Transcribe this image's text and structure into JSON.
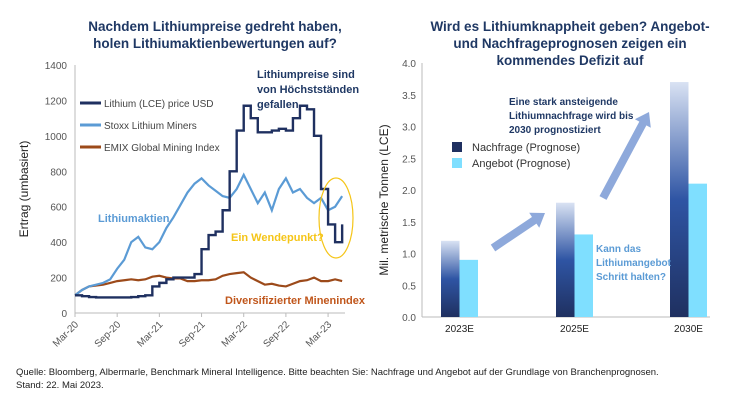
{
  "chart_data": [
    {
      "type": "line",
      "title": "Nachdem Lithiumpreise gedreht haben, holen Lithiumaktienbewertungen auf?",
      "ylabel": "Ertrag (umbasiert)",
      "ylim": [
        0,
        1400
      ],
      "yticks": [
        "0",
        "200",
        "400",
        "600",
        "800",
        "1000",
        "1200",
        "1400"
      ],
      "xticks": [
        "Mar-20",
        "Sep-20",
        "Mar-21",
        "Sep-21",
        "Mar-22",
        "Sep-22",
        "Mar-23"
      ],
      "x_start": "Mar-20",
      "x_frequency": "monthly",
      "legend_position": "top-left",
      "grid": false,
      "series": [
        {
          "name": "Lithium (LCE) price USD",
          "color": "#1f3060",
          "step": true,
          "values": [
            100,
            95,
            90,
            88,
            88,
            88,
            88,
            88,
            90,
            95,
            100,
            150,
            170,
            190,
            200,
            200,
            200,
            220,
            360,
            440,
            460,
            580,
            800,
            1030,
            1170,
            1100,
            1020,
            1020,
            1030,
            1040,
            1030,
            1100,
            1170,
            1150,
            1000,
            700,
            500,
            400,
            500
          ]
        },
        {
          "name": "Stoxx Lithium Miners",
          "color": "#5b9bd5",
          "values": [
            100,
            130,
            150,
            160,
            170,
            190,
            250,
            300,
            400,
            430,
            370,
            360,
            400,
            480,
            540,
            610,
            680,
            730,
            760,
            720,
            690,
            660,
            650,
            700,
            780,
            700,
            620,
            680,
            580,
            700,
            760,
            680,
            700,
            650,
            620,
            650,
            580,
            600,
            660
          ]
        },
        {
          "name": "EMIX Global Mining Index",
          "color": "#9c4a1a",
          "values": [
            100,
            130,
            150,
            155,
            160,
            170,
            180,
            185,
            190,
            185,
            190,
            205,
            210,
            200,
            195,
            195,
            180,
            180,
            185,
            185,
            190,
            210,
            220,
            225,
            230,
            200,
            180,
            160,
            165,
            155,
            150,
            165,
            180,
            185,
            200,
            180,
            180,
            190,
            180
          ]
        }
      ],
      "annotations": {
        "lithium_stocks": "Lithiumaktien",
        "prices_fallen": [
          "Lithiumpreise sind",
          "von Höchstständen",
          "gefallen"
        ],
        "turning_point": "Ein Wendepunkt?",
        "diversified": "Diversifizierter Minenindex"
      },
      "colors": {
        "stocks_label": "#5b9bd5",
        "turning_point": "#f5c518",
        "diversified": "#c0561b",
        "prices_label": "#1f3864"
      }
    },
    {
      "type": "bar",
      "title": "Wird es Lithiumknappheit geben? Angebot- und Nachfrageprognosen zeigen ein kommendes Defizit auf",
      "ylabel": "Mil. metrische Tonnen (LCE)",
      "ylim": [
        0,
        4.0
      ],
      "yticks": [
        "0.0",
        "0.5",
        "1.0",
        "1.5",
        "2.0",
        "2.5",
        "3.0",
        "3.5",
        "4.0"
      ],
      "categories": [
        "2023E",
        "2025E",
        "2030E"
      ],
      "legend_position": "left",
      "series": [
        {
          "name": "Nachfrage (Prognose)",
          "color": "#1f3060",
          "values": [
            1.2,
            1.8,
            3.7
          ]
        },
        {
          "name": "Angebot (Prognose)",
          "color": "#7fdfff",
          "values": [
            0.9,
            1.3,
            2.1
          ]
        }
      ],
      "annotations": {
        "demand": [
          "Eine stark ansteigende",
          "Lithiumnachfrage wird bis",
          "2030 prognostiziert"
        ],
        "supply": [
          "Kann das",
          "Lithiumangebot",
          "Schritt halten?"
        ]
      }
    }
  ],
  "titles": {
    "left": [
      "Nachdem Lithiumpreise gedreht haben,",
      "holen Lithiumaktienbewertungen auf?"
    ],
    "right": [
      "Wird es Lithiumknappheit geben? Angebot-",
      "und Nachfrageprognosen zeigen ein",
      "kommendes Defizit auf"
    ]
  },
  "source": [
    "Quelle: Bloomberg, Albermarle, Benchmark Mineral Intelligence. Bitte beachten Sie: Nachfrage und Angebot auf der Grundlage von Branchenprognosen.",
    "Stand: 22. Mai 2023."
  ]
}
